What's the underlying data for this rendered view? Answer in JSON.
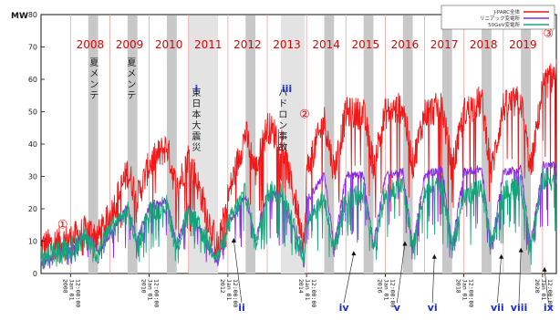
{
  "chart_data": {
    "type": "line",
    "ylabel": "MW",
    "ylim": [
      0,
      80
    ],
    "yticks": [
      0,
      10,
      20,
      30,
      40,
      50,
      60,
      70,
      80
    ],
    "xlim": [
      2007.25,
      2020.35
    ],
    "legend": {
      "placement": "top-right",
      "entries": [
        "J-PARC全体",
        "リニアック変電所",
        "50GeV変電所"
      ]
    },
    "year_labels": [
      "2008",
      "2009",
      "2010",
      "2011",
      "2012",
      "2013",
      "2014",
      "2015",
      "2016",
      "2017",
      "2018",
      "2019"
    ],
    "x_tick_labels": [
      "2008 Jan 01 12:00:00",
      "2010 Jan 01 12:00:00",
      "2012 Jan 01 12:00:00",
      "2014 Jan 01 12:00:00",
      "2016 Jan 01 12:00:00",
      "2018 Jan 01 12:00:00",
      "2020 Jan 01 12:00:00"
    ],
    "annotations": [
      {
        "text": "夏メンテ",
        "year": 2008.6
      },
      {
        "text": "夏メンテ",
        "year": 2009.55
      },
      {
        "text": "東日本大震災",
        "year": 2011.2
      },
      {
        "text": "ハドロン事故",
        "year": 2013.4
      }
    ],
    "circled": [
      {
        "text": "①",
        "year": 2007.8,
        "y": 14
      },
      {
        "text": "②",
        "year": 2013.95,
        "y": 48
      },
      {
        "text": "③",
        "year": 2020.15,
        "y": 73
      }
    ],
    "roman": [
      {
        "text": "i",
        "year": 2011.2,
        "y": 56,
        "arrow_to": null
      },
      {
        "text": "ii",
        "year": 2012.35,
        "y": -10,
        "arrow_to": [
          2012.15,
          11
        ]
      },
      {
        "text": "iii",
        "year": 2013.5,
        "y": 56,
        "arrow_to": null
      },
      {
        "text": "iv",
        "year": 2014.95,
        "y": -10,
        "arrow_to": [
          2015.2,
          7
        ]
      },
      {
        "text": "v",
        "year": 2016.3,
        "y": -10,
        "arrow_to": [
          2016.5,
          10
        ]
      },
      {
        "text": "vi",
        "year": 2017.2,
        "y": -10,
        "arrow_to": [
          2017.25,
          6
        ]
      },
      {
        "text": "vii",
        "year": 2018.85,
        "y": -10,
        "arrow_to": [
          2018.95,
          6
        ]
      },
      {
        "text": "viii",
        "year": 2019.4,
        "y": -10,
        "arrow_to": [
          2019.45,
          8
        ]
      },
      {
        "text": "ix",
        "year": 2020.15,
        "y": -10,
        "arrow_to": [
          2020.05,
          2
        ]
      }
    ],
    "shutdowns": [
      [
        2008.45,
        2008.7
      ],
      [
        2009.45,
        2009.7
      ],
      [
        2010.45,
        2010.7
      ],
      [
        2011.0,
        2011.75
      ],
      [
        2012.45,
        2012.7
      ],
      [
        2013.35,
        2013.95
      ],
      [
        2014.45,
        2014.7
      ],
      [
        2015.45,
        2015.7
      ],
      [
        2016.45,
        2016.7
      ],
      [
        2017.45,
        2017.7
      ],
      [
        2018.45,
        2018.7
      ],
      [
        2019.45,
        2019.7
      ]
    ],
    "series": [
      {
        "name": "J-PARC全体",
        "color": "#f01818",
        "base": [
          [
            2007.3,
            7
          ],
          [
            2008.0,
            9
          ],
          [
            2008.45,
            12
          ],
          [
            2008.7,
            10
          ],
          [
            2009.0,
            16
          ],
          [
            2009.45,
            30
          ],
          [
            2009.7,
            22
          ],
          [
            2010.0,
            32
          ],
          [
            2010.45,
            38
          ],
          [
            2010.7,
            24
          ],
          [
            2011.0,
            35
          ],
          [
            2011.75,
            6
          ],
          [
            2012.0,
            22
          ],
          [
            2012.45,
            42
          ],
          [
            2012.7,
            30
          ],
          [
            2013.0,
            44
          ],
          [
            2013.35,
            40
          ],
          [
            2013.95,
            8
          ],
          [
            2014.0,
            30
          ],
          [
            2014.45,
            46
          ],
          [
            2014.7,
            30
          ],
          [
            2015.0,
            48
          ],
          [
            2015.45,
            48
          ],
          [
            2015.7,
            32
          ],
          [
            2016.0,
            48
          ],
          [
            2016.45,
            50
          ],
          [
            2016.7,
            32
          ],
          [
            2017.0,
            48
          ],
          [
            2017.45,
            50
          ],
          [
            2017.7,
            30
          ],
          [
            2018.0,
            48
          ],
          [
            2018.45,
            52
          ],
          [
            2018.7,
            30
          ],
          [
            2019.0,
            50
          ],
          [
            2019.45,
            52
          ],
          [
            2019.7,
            30
          ],
          [
            2020.0,
            56
          ],
          [
            2020.3,
            60
          ]
        ],
        "noise": 10
      },
      {
        "name": "リニアック変電所",
        "color": "#8a2be2",
        "base": [
          [
            2007.3,
            3
          ],
          [
            2008.0,
            8
          ],
          [
            2008.45,
            12
          ],
          [
            2008.7,
            6
          ],
          [
            2009.0,
            12
          ],
          [
            2009.45,
            20
          ],
          [
            2009.7,
            10
          ],
          [
            2010.0,
            20
          ],
          [
            2010.45,
            22
          ],
          [
            2010.7,
            8
          ],
          [
            2011.0,
            20
          ],
          [
            2011.75,
            3
          ],
          [
            2012.0,
            15
          ],
          [
            2012.45,
            24
          ],
          [
            2012.7,
            10
          ],
          [
            2013.0,
            24
          ],
          [
            2013.35,
            24
          ],
          [
            2013.95,
            4
          ],
          [
            2014.0,
            22
          ],
          [
            2014.45,
            30
          ],
          [
            2014.7,
            8
          ],
          [
            2015.0,
            30
          ],
          [
            2015.45,
            30
          ],
          [
            2015.7,
            8
          ],
          [
            2016.0,
            30
          ],
          [
            2016.45,
            31
          ],
          [
            2016.7,
            8
          ],
          [
            2017.0,
            30
          ],
          [
            2017.45,
            32
          ],
          [
            2017.7,
            8
          ],
          [
            2018.0,
            31
          ],
          [
            2018.45,
            32
          ],
          [
            2018.7,
            8
          ],
          [
            2019.0,
            31
          ],
          [
            2019.45,
            32
          ],
          [
            2019.7,
            8
          ],
          [
            2020.0,
            33
          ],
          [
            2020.3,
            33
          ]
        ],
        "noise": 2.5
      },
      {
        "name": "50GeV変電所",
        "color": "#16a57a",
        "base": [
          [
            2007.3,
            4
          ],
          [
            2008.0,
            7
          ],
          [
            2008.45,
            10
          ],
          [
            2008.7,
            5
          ],
          [
            2009.0,
            12
          ],
          [
            2009.45,
            18
          ],
          [
            2009.7,
            8
          ],
          [
            2010.0,
            18
          ],
          [
            2010.45,
            20
          ],
          [
            2010.7,
            7
          ],
          [
            2011.0,
            18
          ],
          [
            2011.75,
            4
          ],
          [
            2012.0,
            14
          ],
          [
            2012.45,
            24
          ],
          [
            2012.7,
            8
          ],
          [
            2013.0,
            24
          ],
          [
            2013.35,
            24
          ],
          [
            2013.95,
            4
          ],
          [
            2014.0,
            16
          ],
          [
            2014.45,
            22
          ],
          [
            2014.7,
            6
          ],
          [
            2015.0,
            22
          ],
          [
            2015.45,
            24
          ],
          [
            2015.7,
            7
          ],
          [
            2016.0,
            24
          ],
          [
            2016.45,
            26
          ],
          [
            2016.7,
            7
          ],
          [
            2017.0,
            24
          ],
          [
            2017.45,
            26
          ],
          [
            2017.7,
            7
          ],
          [
            2018.0,
            22
          ],
          [
            2018.45,
            26
          ],
          [
            2018.7,
            7
          ],
          [
            2019.0,
            24
          ],
          [
            2019.45,
            26
          ],
          [
            2019.7,
            7
          ],
          [
            2020.0,
            28
          ],
          [
            2020.3,
            28
          ]
        ],
        "noise": 7
      }
    ]
  }
}
